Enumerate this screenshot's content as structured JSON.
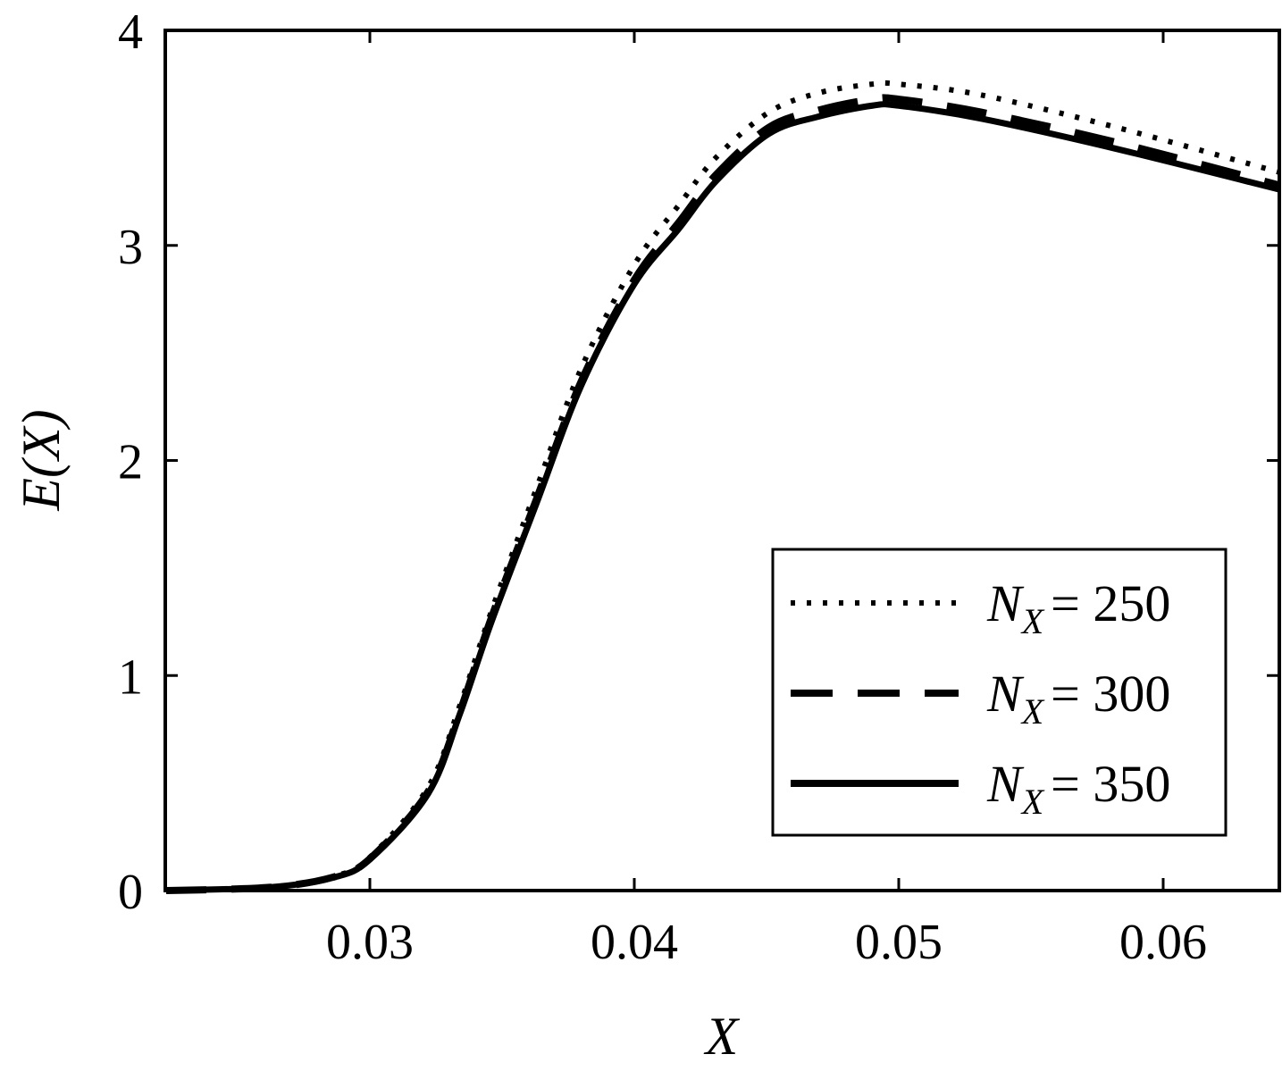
{
  "chart_data": {
    "type": "line",
    "title": "",
    "xlabel": "X",
    "ylabel": "E(X)",
    "xlim": [
      0.02226,
      0.0644
    ],
    "ylim": [
      0,
      4
    ],
    "xticks": [
      0.03,
      0.04,
      0.05,
      0.06
    ],
    "xtick_labels": [
      "0.03",
      "0.04",
      "0.05",
      "0.06"
    ],
    "yticks": [
      0,
      1,
      2,
      3,
      4
    ],
    "ytick_labels": [
      "0",
      "1",
      "2",
      "3",
      "4"
    ],
    "grid": false,
    "legend_position": "lower right",
    "series": [
      {
        "name": "N_X = 250",
        "label_main": "N",
        "label_sub": "X",
        "label_value": "= 250",
        "style": "dotted",
        "x": [
          0.0223,
          0.0262,
          0.0286,
          0.03,
          0.0322,
          0.0334,
          0.0346,
          0.0363,
          0.038,
          0.04,
          0.0417,
          0.0431,
          0.0451,
          0.047,
          0.049,
          0.05,
          0.0531,
          0.0582,
          0.0644
        ],
        "y": [
          0.0,
          0.016,
          0.065,
          0.155,
          0.48,
          0.86,
          1.3,
          1.87,
          2.43,
          2.91,
          3.19,
          3.41,
          3.62,
          3.71,
          3.75,
          3.75,
          3.7,
          3.55,
          3.34
        ]
      },
      {
        "name": "N_X = 300",
        "label_main": "N",
        "label_sub": "X",
        "label_value": "= 300",
        "style": "dashed",
        "x": [
          0.0223,
          0.0262,
          0.0286,
          0.03,
          0.0322,
          0.0334,
          0.0346,
          0.0363,
          0.038,
          0.04,
          0.0417,
          0.0431,
          0.0451,
          0.047,
          0.049,
          0.05,
          0.0531,
          0.0582,
          0.0644
        ],
        "y": [
          0.0,
          0.015,
          0.062,
          0.148,
          0.46,
          0.83,
          1.27,
          1.82,
          2.37,
          2.84,
          3.11,
          3.33,
          3.55,
          3.63,
          3.68,
          3.68,
          3.62,
          3.48,
          3.28
        ]
      },
      {
        "name": "N_X = 350",
        "label_main": "N",
        "label_sub": "X",
        "label_value": "= 350",
        "style": "solid",
        "x": [
          0.0223,
          0.0262,
          0.0286,
          0.03,
          0.0322,
          0.0334,
          0.0346,
          0.0363,
          0.038,
          0.04,
          0.0417,
          0.0431,
          0.0451,
          0.047,
          0.049,
          0.05,
          0.0531,
          0.0582,
          0.0644
        ],
        "y": [
          0.0,
          0.015,
          0.06,
          0.145,
          0.45,
          0.82,
          1.25,
          1.8,
          2.35,
          2.82,
          3.08,
          3.3,
          3.52,
          3.6,
          3.65,
          3.65,
          3.59,
          3.45,
          3.26
        ]
      }
    ]
  },
  "axes": {
    "xlabel": "X",
    "ylabel": "E(X)"
  },
  "legend": {
    "items": [
      {
        "main": "N",
        "sub": "X",
        "value": "= 250",
        "style": "dotted"
      },
      {
        "main": "N",
        "sub": "X",
        "value": "= 300",
        "style": "dashed"
      },
      {
        "main": "N",
        "sub": "X",
        "value": "= 350",
        "style": "solid"
      }
    ]
  }
}
